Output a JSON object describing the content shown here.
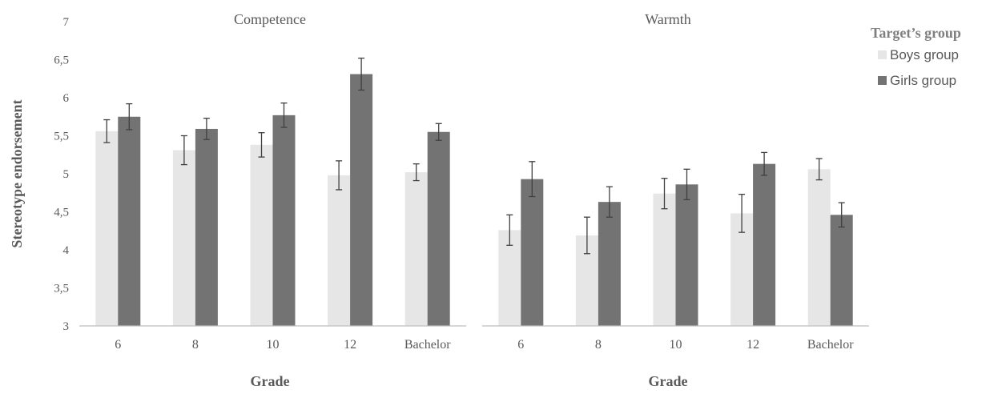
{
  "chart_data": {
    "type": "bar",
    "ylabel": "Stereotype endorsement",
    "ylim": [
      3,
      7
    ],
    "yticks": [
      "3",
      "3,5",
      "4",
      "4,5",
      "5",
      "5,5",
      "6",
      "6,5",
      "7"
    ],
    "legend": {
      "title": "Target’s group",
      "entries": [
        "Boys group",
        "Girls group"
      ],
      "placement": "right"
    },
    "colors": {
      "boys": "#e7e6e6",
      "girls": "#737373",
      "axis": "#bfbfbf",
      "text": "#595959",
      "error": "#404040"
    },
    "panels": [
      {
        "title": "Competence",
        "xlabel": "Grade",
        "categories": [
          "6",
          "8",
          "10",
          "12",
          "Bachelor"
        ],
        "series": [
          {
            "name": "Boys group",
            "values": [
              5.56,
              5.31,
              5.38,
              4.98,
              5.02
            ],
            "errors": [
              0.15,
              0.19,
              0.16,
              0.19,
              0.11
            ]
          },
          {
            "name": "Girls group",
            "values": [
              5.75,
              5.59,
              5.77,
              6.31,
              5.55
            ],
            "errors": [
              0.17,
              0.14,
              0.16,
              0.21,
              0.11
            ]
          }
        ]
      },
      {
        "title": "Warmth",
        "xlabel": "Grade",
        "categories": [
          "6",
          "8",
          "10",
          "12",
          "Bachelor"
        ],
        "series": [
          {
            "name": "Boys group",
            "values": [
              4.26,
              4.19,
              4.74,
              4.48,
              5.06
            ],
            "errors": [
              0.2,
              0.24,
              0.2,
              0.25,
              0.14
            ]
          },
          {
            "name": "Girls group",
            "values": [
              4.93,
              4.63,
              4.86,
              5.13,
              4.46
            ],
            "errors": [
              0.23,
              0.2,
              0.2,
              0.15,
              0.16
            ]
          }
        ]
      }
    ]
  }
}
